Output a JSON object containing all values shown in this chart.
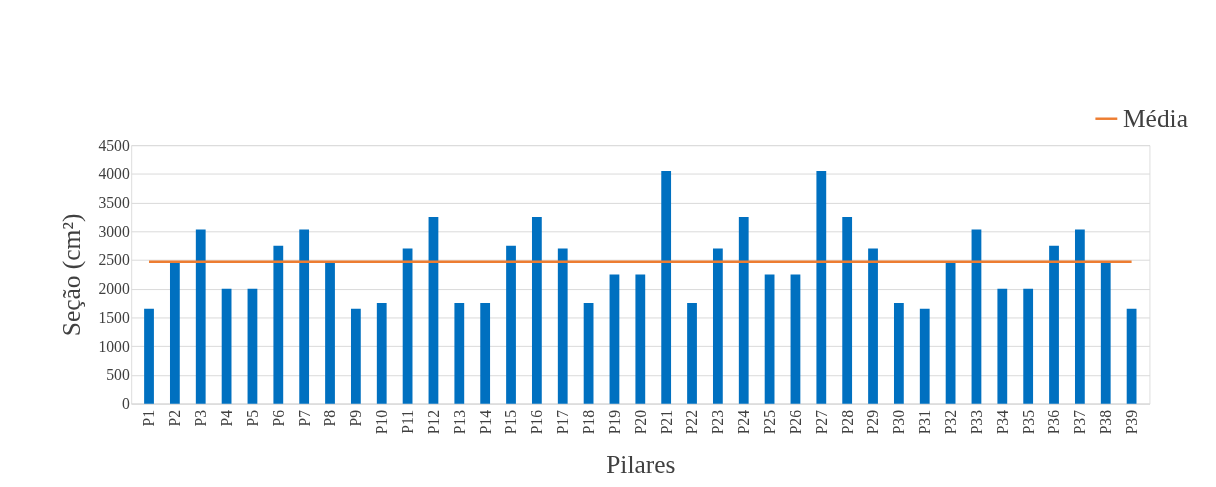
{
  "chart_data": {
    "type": "bar",
    "xlabel": "Pilares",
    "ylabel": "Seção (cm²)",
    "categories": [
      "P1",
      "P2",
      "P3",
      "P4",
      "P5",
      "P6",
      "P7",
      "P8",
      "P9",
      "P10",
      "P11",
      "P12",
      "P13",
      "P14",
      "P15",
      "P16",
      "P17",
      "P18",
      "P19",
      "P20",
      "P21",
      "P22",
      "P23",
      "P24",
      "P25",
      "P26",
      "P27",
      "P28",
      "P29",
      "P30",
      "P31",
      "P32",
      "P33",
      "P34",
      "P35",
      "P36",
      "P37",
      "P38",
      "P39"
    ],
    "series": [
      {
        "color": "#0070c0",
        "values": [
          1650,
          2450,
          3030,
          2000,
          2000,
          2750,
          3030,
          2450,
          1650,
          1750,
          2700,
          3250,
          1750,
          1750,
          2750,
          3250,
          2700,
          1750,
          2250,
          2250,
          4050,
          1750,
          2700,
          3250,
          2250,
          2250,
          4050,
          3250,
          2700,
          1750,
          1650,
          2450,
          3030,
          2000,
          2000,
          2750,
          3030,
          2450,
          1650
        ]
      },
      {
        "type": "line",
        "name": "Média",
        "color": "#ed7d31",
        "values": [
          2470,
          2470,
          2470,
          2470,
          2470,
          2470,
          2470,
          2470,
          2470,
          2470,
          2470,
          2470,
          2470,
          2470,
          2470,
          2470,
          2470,
          2470,
          2470,
          2470,
          2470,
          2470,
          2470,
          2470,
          2470,
          2470,
          2470,
          2470,
          2470,
          2470,
          2470,
          2470,
          2470,
          2470,
          2470,
          2470,
          2470,
          2470,
          2470
        ]
      }
    ],
    "ylim": [
      0,
      4500
    ],
    "yticks": [
      0,
      500,
      1000,
      1500,
      2000,
      2500,
      3000,
      3500,
      4000,
      4500
    ],
    "grid": "y",
    "legend": "top right"
  }
}
